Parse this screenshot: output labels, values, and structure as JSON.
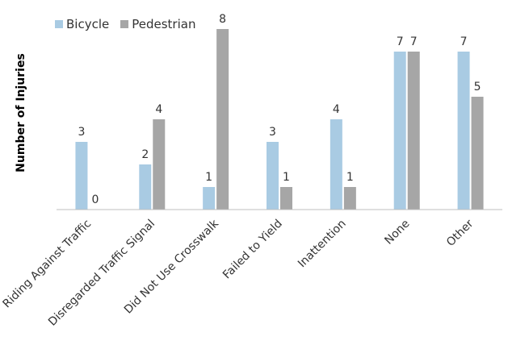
{
  "chart_data": {
    "type": "bar",
    "title": "",
    "xlabel": "",
    "ylabel": "Number of Injuries",
    "ylim": [
      0,
      8
    ],
    "grid": false,
    "legend_position": "top-left",
    "categories": [
      "Riding Against Traffic",
      "Disregarded Traffic Signal",
      "Did Not Use Crosswalk",
      "Failed to Yield",
      "Inattention",
      "None",
      "Other"
    ],
    "series": [
      {
        "name": "Bicycle",
        "color": "#a9cbe3",
        "values": [
          3,
          2,
          1,
          3,
          4,
          7,
          7
        ]
      },
      {
        "name": "Pedestrian",
        "color": "#a6a6a6",
        "values": [
          0,
          4,
          8,
          1,
          1,
          7,
          5
        ]
      }
    ]
  }
}
